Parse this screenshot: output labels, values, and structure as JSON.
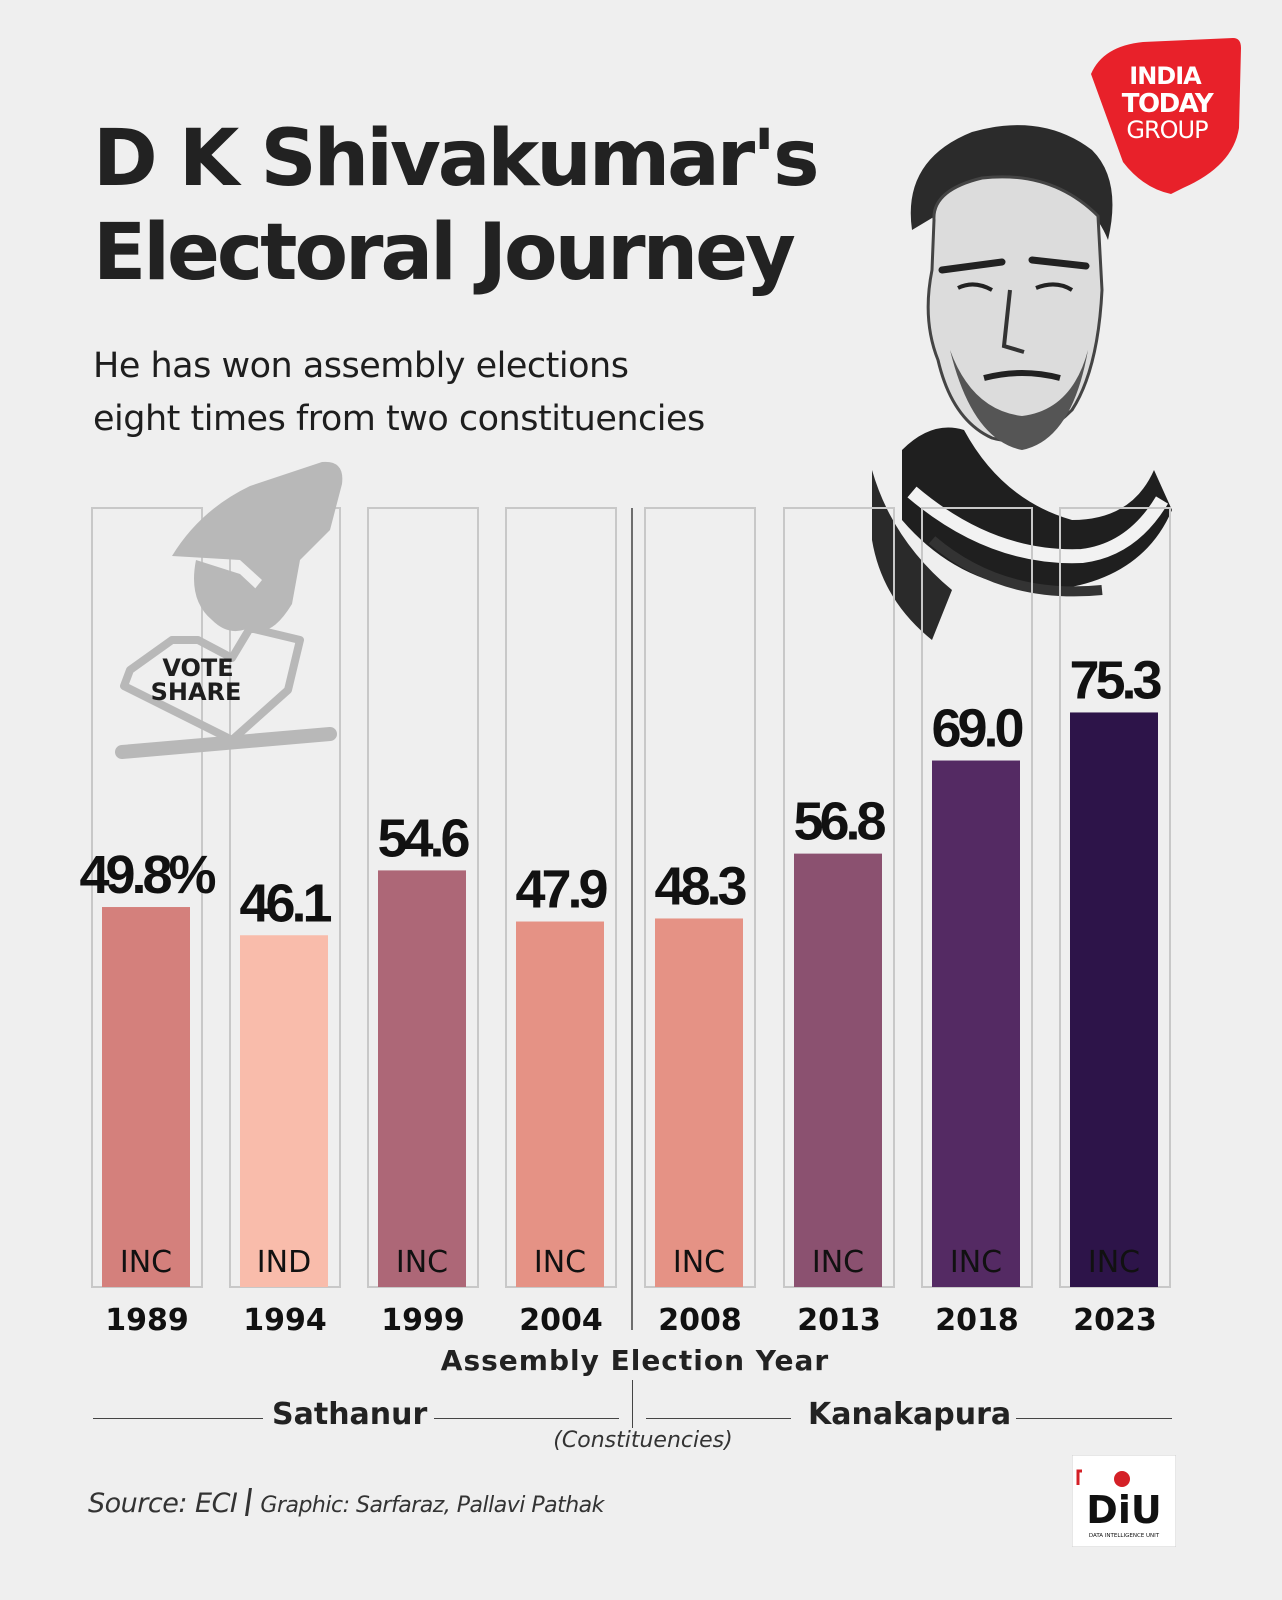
{
  "headline": {
    "line1": "D K Shivakumar's",
    "line2": "Electoral Journey"
  },
  "subtitle": {
    "line1": "He has won assembly elections",
    "line2": "eight times from two constituencies"
  },
  "logo": {
    "line1": "INDIA",
    "line2": "TODAY",
    "line3": "GROUP",
    "color": "#e8212a"
  },
  "vote_share_badge": {
    "line1": "VOTE",
    "line2": "SHARE"
  },
  "chart_data": {
    "type": "bar",
    "title": "",
    "xlabel": "Assembly Election Year",
    "ylabel": "Vote share (%)",
    "ylim": [
      0,
      100
    ],
    "categories": [
      "1989",
      "1994",
      "1999",
      "2004",
      "2008",
      "2013",
      "2018",
      "2023"
    ],
    "values": [
      49.8,
      46.1,
      54.6,
      47.9,
      48.3,
      56.8,
      69.0,
      75.3
    ],
    "value_labels": [
      "49.8%",
      "46.1",
      "54.6",
      "47.9",
      "48.3",
      "56.8",
      "69.0",
      "75.3"
    ],
    "parties": [
      "INC",
      "IND",
      "INC",
      "INC",
      "INC",
      "INC",
      "INC",
      "INC"
    ],
    "colors": [
      "#d4807c",
      "#f9bcab",
      "#ad6777",
      "#e59285",
      "#e59285",
      "#8b5170",
      "#542a63",
      "#2d1449"
    ],
    "constituency_groups": [
      {
        "name": "Sathanur",
        "categories": [
          "1989",
          "1994",
          "1999",
          "2004"
        ]
      },
      {
        "name": "Kanakapura",
        "categories": [
          "2008",
          "2013",
          "2018",
          "2023"
        ]
      }
    ],
    "constituency_caption": "(Constituencies)",
    "grid": false,
    "legend": "none"
  },
  "footer": {
    "source": "Source: ECI",
    "credit": "Graphic: Sarfaraz, Pallavi Pathak",
    "diu_logo": "DiU",
    "diu_subtext": "DATA INTELLIGENCE UNIT"
  }
}
